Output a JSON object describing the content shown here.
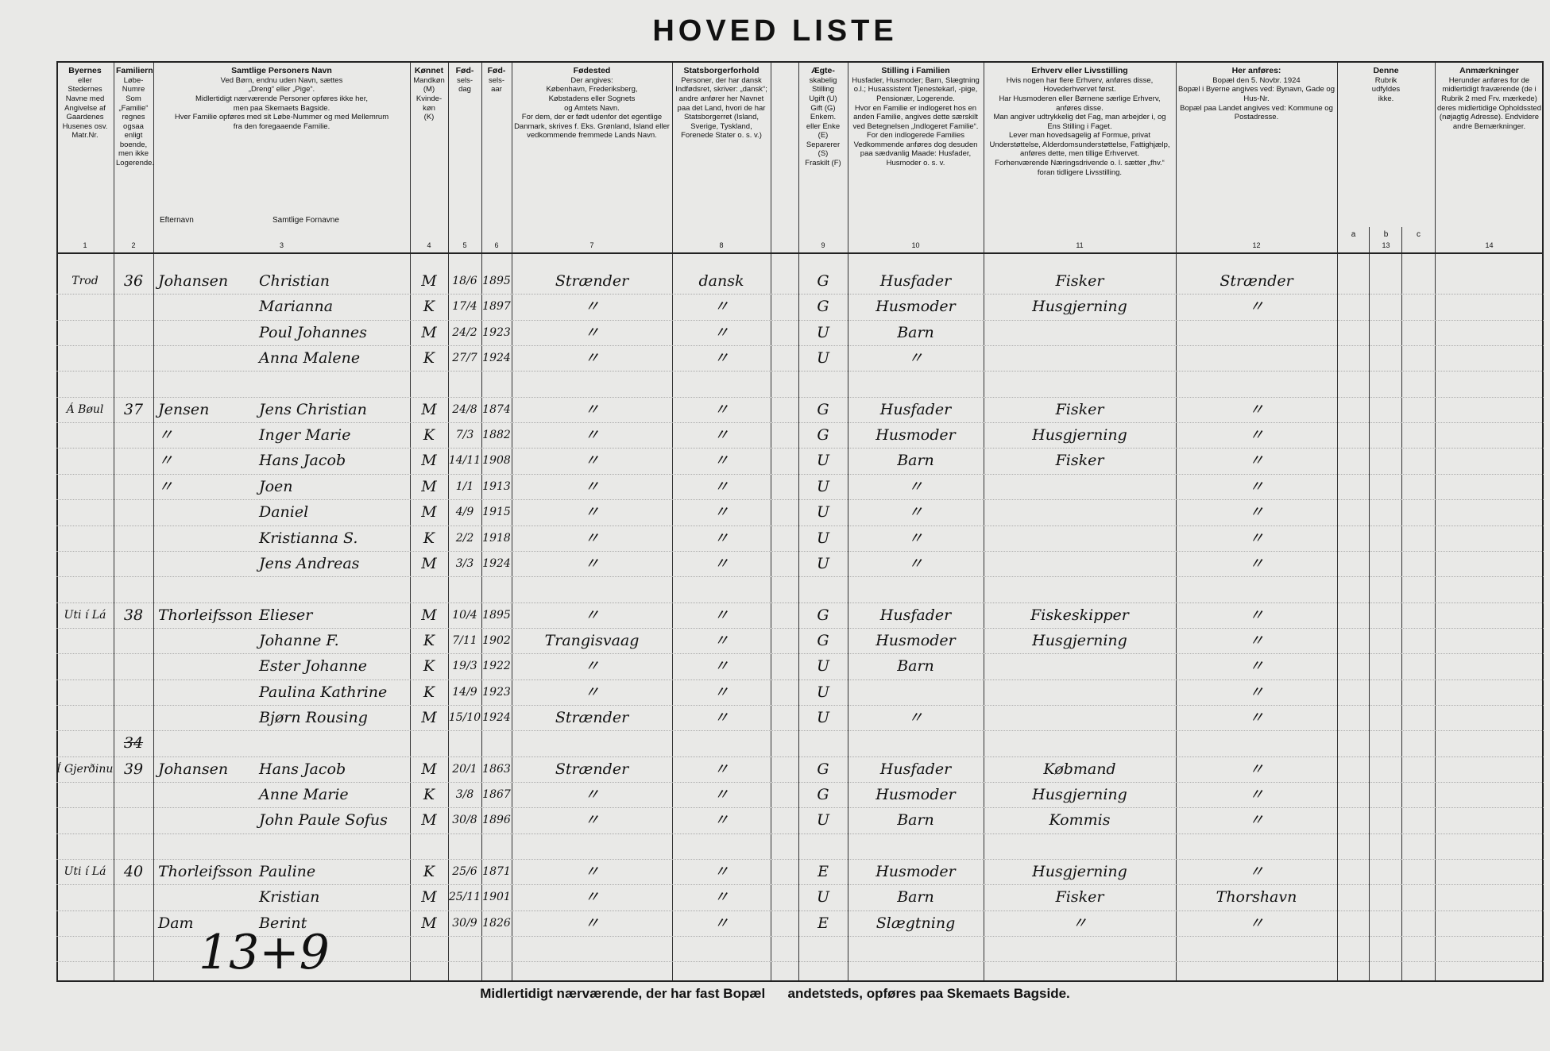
{
  "title": "HOVED LISTE",
  "columns": [
    {
      "number": "1",
      "text": "Byernes\neller\nStedernes\nNavne med\nAngivelse af\nGaardenes\nHusenes osv.\nMatr.Nr."
    },
    {
      "number": "2",
      "text": "Familiernes\nLøbe-\nNumre\nSom „Familie“ regnes ogsaa enligt boende, men ikke Logerende."
    },
    {
      "number": "3",
      "text": "Samtlige Personers Navn\nVed Børn, endnu uden Navn, sættes\n„Dreng“ eller „Pige“.\nMidlertidigt nærværende Personer opføres ikke her,\nmen paa Skemaets Bagside.\nHver Familie opføres med sit Løbe-Nummer og med Mellemrum\nfra den foregaaende Familie.",
      "subs": [
        "Efternavn",
        "Samtlige Fornavne"
      ]
    },
    {
      "number": "4",
      "text": "Kønnet\nMandkøn\n(M)\nKvinde-\nkøn\n(K)"
    },
    {
      "number": "5",
      "text": "Fød-\nsels-\ndag"
    },
    {
      "number": "6",
      "text": "Fød-\nsels-\naar"
    },
    {
      "number": "7",
      "text": "Fødested\nDer angives:\nKøbenhavn, Frederiksberg,\nKøbstadens eller Sognets\nog Amtets Navn.\nFor dem, der er født udenfor det egentlige Danmark, skrives f. Eks. Grønland, Island eller vedkommende fremmede Lands Navn."
    },
    {
      "number": "8",
      "text": "Statsborgerforhold\nPersoner, der har dansk Indfødsret, skriver: „dansk“; andre anfører her Navnet paa det Land, hvori de har Statsborgerret (Island, Sverige, Tyskland, Forenede Stater o. s. v.)"
    },
    {
      "number": "9",
      "text": "Ægte-\nskabelig\nStilling\nUgift (U)\nGift (G)\nEnkem.\neller Enke\n(E)\nSeparerer\n(S)\nFraskilt (F)"
    },
    {
      "number": "10",
      "text": "Stilling i Familien\nHusfader, Husmoder; Barn, Slægtning o.l.; Husassistent Tjenestekarl, -pige, Pensionær, Logerende.\nHvor en Familie er indlogeret hos en anden Familie, angives dette særskilt ved Betegnelsen „Indlogeret Familie“. For den indlogerede Families Vedkommende anføres dog desuden paa sædvanlig Maade: Husfader, Husmoder o. s. v."
    },
    {
      "number": "11",
      "text": "Erhverv eller Livsstilling\nHvis nogen har flere Erhverv, anføres disse, Hovederhvervet først.\nHar Husmoderen eller Børnene særlige Erhverv, anføres disse.\nMan angiver udtrykkelig det Fag, man arbejder i, og Ens Stilling i Faget.\nLever man hovedsagelig af Formue, privat Understøttelse, Alderdomsunderstøttelse, Fattighjælp, anføres dette, men tillige Erhvervet.\nForhenværende Næringsdrivende o. l. sætter „fhv.“ foran tidligere Livsstilling."
    },
    {
      "number": "12",
      "text": "Her anføres:\nBopæl den 5. Novbr. 1924\nBopæl i Byerne angives ved: Bynavn, Gade og Hus-Nr.\nBopæl paa Landet angives ved: Kommune og Postadresse."
    },
    {
      "number": "13",
      "text": "Denne\nRubrik\nudfyldes\nikke.",
      "subs": [
        "a",
        "b",
        "c"
      ]
    },
    {
      "number": "14",
      "text": "Anmærkninger\nHerunder anføres for de midlertidigt fraværende (de i Rubrik 2 med Frv. mærkede) deres midlertidige Opholdssted (nøjagtig Adresse). Endvidere andre Bemærkninger."
    }
  ],
  "rows": [
    {
      "place": "Trod",
      "no": "36",
      "surname": "Johansen",
      "given": "Christian",
      "sex": "M",
      "day": "18/6",
      "year": "1895",
      "birthplace": "Strænder",
      "citizenship": "dansk",
      "marital": "G",
      "position": "Husfader",
      "occupation": "Fisker",
      "residence": "Strænder"
    },
    {
      "given": "Marianna",
      "sex": "K",
      "day": "17/4",
      "year": "1897",
      "birthplace": "〃",
      "citizenship": "〃",
      "marital": "G",
      "position": "Husmoder",
      "occupation": "Husgjerning",
      "residence": "〃"
    },
    {
      "given": "Poul Johannes",
      "sex": "M",
      "day": "24/2",
      "year": "1923",
      "birthplace": "〃",
      "citizenship": "〃",
      "marital": "U",
      "position": "Barn"
    },
    {
      "given": "Anna Malene",
      "sex": "K",
      "day": "27/7",
      "year": "1924",
      "birthplace": "〃",
      "citizenship": "〃",
      "marital": "U",
      "position": "〃"
    },
    {
      "place": "Á Bøul",
      "no": "37",
      "surname": "Jensen",
      "given": "Jens Christian",
      "sex": "M",
      "day": "24/8",
      "year": "1874",
      "birthplace": "〃",
      "citizenship": "〃",
      "marital": "G",
      "position": "Husfader",
      "occupation": "Fisker",
      "residence": "〃"
    },
    {
      "surname": "〃",
      "given": "Inger Marie",
      "sex": "K",
      "day": "7/3",
      "year": "1882",
      "birthplace": "〃",
      "citizenship": "〃",
      "marital": "G",
      "position": "Husmoder",
      "occupation": "Husgjerning",
      "residence": "〃"
    },
    {
      "surname": "〃",
      "given": "Hans Jacob",
      "sex": "M",
      "day": "14/11",
      "year": "1908",
      "birthplace": "〃",
      "citizenship": "〃",
      "marital": "U",
      "position": "Barn",
      "occupation": "Fisker",
      "residence": "〃"
    },
    {
      "surname": "〃",
      "given": "Joen",
      "sex": "M",
      "day": "1/1",
      "year": "1913",
      "birthplace": "〃",
      "citizenship": "〃",
      "marital": "U",
      "position": "〃",
      "residence": "〃"
    },
    {
      "given": "Daniel",
      "sex": "M",
      "day": "4/9",
      "year": "1915",
      "birthplace": "〃",
      "citizenship": "〃",
      "marital": "U",
      "position": "〃",
      "residence": "〃"
    },
    {
      "given": "Kristianna S.",
      "sex": "K",
      "day": "2/2",
      "year": "1918",
      "birthplace": "〃",
      "citizenship": "〃",
      "marital": "U",
      "position": "〃",
      "residence": "〃"
    },
    {
      "given": "Jens Andreas",
      "sex": "M",
      "day": "3/3",
      "year": "1924",
      "birthplace": "〃",
      "citizenship": "〃",
      "marital": "U",
      "position": "〃",
      "residence": "〃"
    },
    {
      "place": "Uti í Lá",
      "no": "38",
      "surname": "Thorleifsson",
      "given": "Elieser",
      "sex": "M",
      "day": "10/4",
      "year": "1895",
      "birthplace": "〃",
      "citizenship": "〃",
      "marital": "G",
      "position": "Husfader",
      "occupation": "Fiskeskipper",
      "residence": "〃"
    },
    {
      "given": "Johanne F.",
      "sex": "K",
      "day": "7/11",
      "year": "1902",
      "birthplace": "Trangisvaag",
      "citizenship": "〃",
      "marital": "G",
      "position": "Husmoder",
      "occupation": "Husgjerning",
      "residence": "〃"
    },
    {
      "given": "Ester Johanne",
      "sex": "K",
      "day": "19/3",
      "year": "1922",
      "birthplace": "〃",
      "citizenship": "〃",
      "marital": "U",
      "position": "Barn",
      "residence": "〃"
    },
    {
      "given": "Paulina Kathrine",
      "sex": "K",
      "day": "14/9",
      "year": "1923",
      "birthplace": "〃",
      "citizenship": "〃",
      "marital": "U",
      "residence": "〃"
    },
    {
      "given": "Bjørn Rousing",
      "sex": "M",
      "day": "15/10",
      "year": "1924",
      "birthplace": "Strænder",
      "citizenship": "〃",
      "marital": "U",
      "position": "〃",
      "residence": "〃"
    },
    {
      "place": "Í Gjerðinum",
      "no": "39",
      "surname": "Johansen",
      "given": "Hans Jacob",
      "sex": "M",
      "day": "20/1",
      "year": "1863",
      "birthplace": "Strænder",
      "citizenship": "〃",
      "marital": "G",
      "position": "Husfader",
      "occupation": "Købmand",
      "residence": "〃"
    },
    {
      "given": "Anne Marie",
      "sex": "K",
      "day": "3/8",
      "year": "1867",
      "birthplace": "〃",
      "citizenship": "〃",
      "marital": "G",
      "position": "Husmoder",
      "occupation": "Husgjerning",
      "residence": "〃"
    },
    {
      "given": "John Paule Sofus",
      "sex": "M",
      "day": "30/8",
      "year": "1896",
      "birthplace": "〃",
      "citizenship": "〃",
      "marital": "U",
      "position": "Barn",
      "occupation": "Kommis",
      "residence": "〃"
    },
    {
      "place": "Uti í Lá",
      "no": "40",
      "surname": "Thorleifsson",
      "given": "Pauline",
      "sex": "K",
      "day": "25/6",
      "year": "1871",
      "birthplace": "〃",
      "citizenship": "〃",
      "marital": "E",
      "position": "Husmoder",
      "occupation": "Husgjerning",
      "residence": "〃"
    },
    {
      "given": "Kristian",
      "sex": "M",
      "day": "25/11",
      "year": "1901",
      "birthplace": "〃",
      "citizenship": "〃",
      "marital": "U",
      "position": "Barn",
      "occupation": "Fisker",
      "residence": "Thorshavn"
    },
    {
      "surname": "Dam",
      "given": "Berint",
      "sex": "M",
      "day": "30/9",
      "year": "1826",
      "birthplace": "〃",
      "citizenship": "〃",
      "marital": "E",
      "position": "Slægtning",
      "occupation": "〃",
      "residence": "〃"
    }
  ],
  "struck_number": "34",
  "tally": "13+9",
  "footer": "Midlertidigt nærværende, der har fast Bopæl      andetsteds, opføres paa Skemaets Bagside."
}
